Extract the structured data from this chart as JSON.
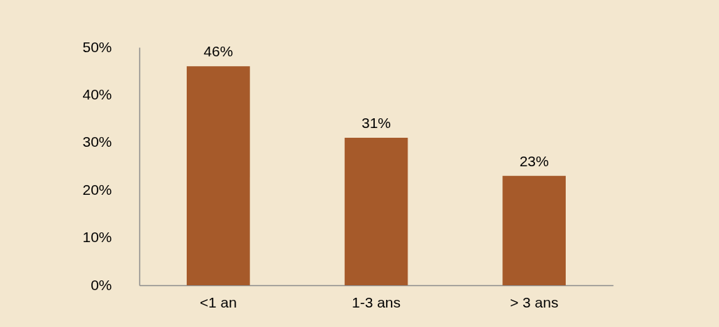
{
  "chart_data": {
    "type": "bar",
    "categories": [
      "<1 an",
      "1-3 ans",
      "> 3 ans"
    ],
    "values": [
      46,
      31,
      23
    ],
    "value_labels": [
      "46%",
      "31%",
      "23%"
    ],
    "color": "#a65a2a",
    "ylim": [
      0,
      50
    ],
    "yticks": [
      {
        "value": 0,
        "label": "0%"
      },
      {
        "value": 10,
        "label": "10%"
      },
      {
        "value": 20,
        "label": "20%"
      },
      {
        "value": 30,
        "label": "30%"
      },
      {
        "value": 40,
        "label": "40%"
      },
      {
        "value": 50,
        "label": "50%"
      }
    ],
    "grid": false
  }
}
